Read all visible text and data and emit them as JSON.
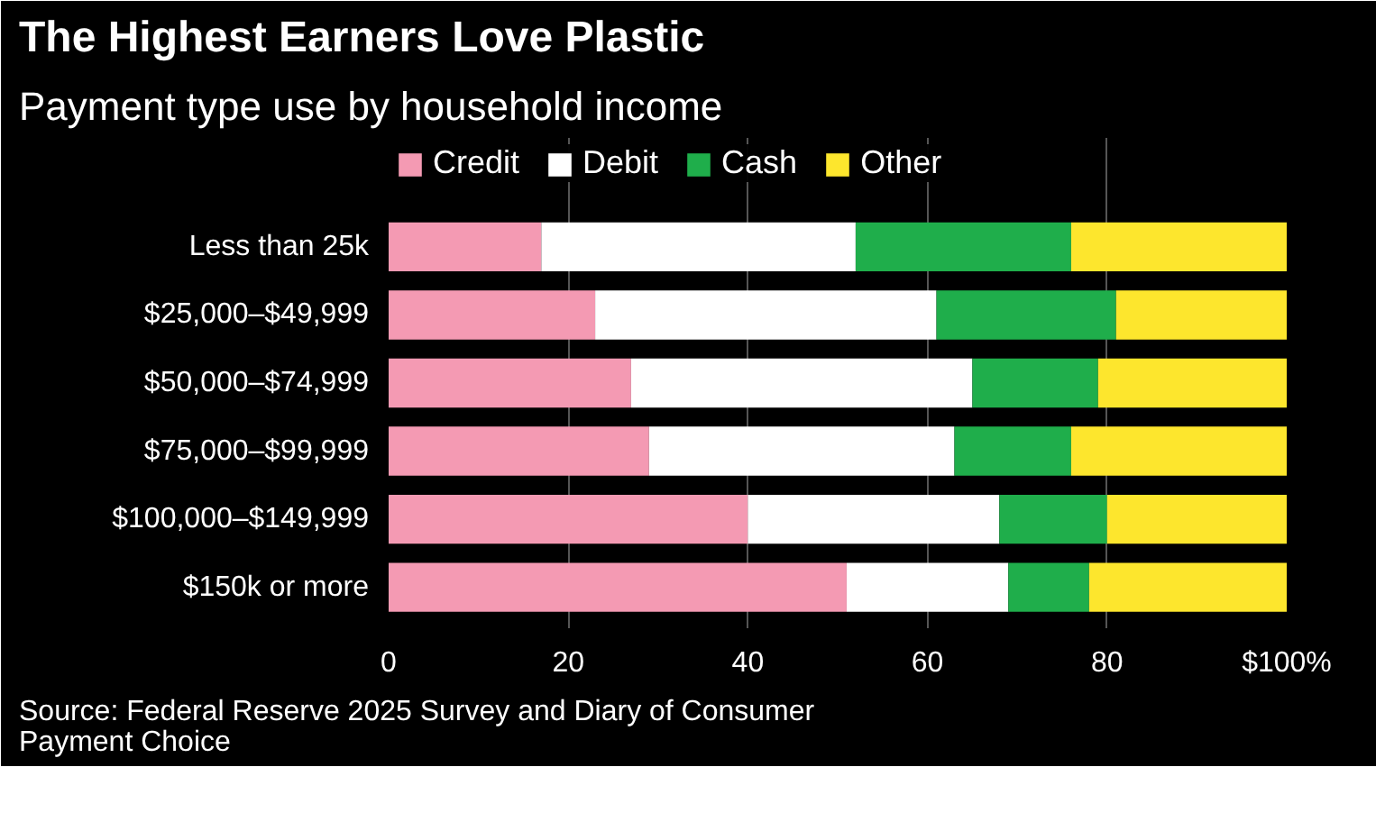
{
  "chart_data": {
    "type": "bar",
    "orientation": "horizontal",
    "stacked": true,
    "title": "The Highest Earners Love Plastic",
    "subtitle": "Payment type use by household income",
    "categories": [
      "Less than 25k",
      "$25,000–$49,999",
      "$50,000–$74,999",
      "$75,000–$99,999",
      "$100,000–$149,999",
      "$150k or more"
    ],
    "series": [
      {
        "name": "Credit",
        "color": "#f49ab3",
        "values": [
          17,
          23,
          27,
          29,
          40,
          51
        ]
      },
      {
        "name": "Debit",
        "color": "#ffffff",
        "values": [
          35,
          38,
          38,
          34,
          28,
          18
        ]
      },
      {
        "name": "Cash",
        "color": "#1fae4b",
        "values": [
          24,
          20,
          14,
          13,
          12,
          9
        ]
      },
      {
        "name": "Other",
        "color": "#fde62d",
        "values": [
          24,
          19,
          21,
          24,
          20,
          22
        ]
      }
    ],
    "xlim": [
      0,
      100
    ],
    "xticks": [
      0,
      20,
      40,
      60,
      80,
      {
        "value": 100,
        "label": "$100%"
      }
    ],
    "grid": "x",
    "legend": "top left",
    "annotations": [
      "Source: Federal Reserve 2025 Survey and Diary of Consumer\nPayment Choice"
    ]
  }
}
